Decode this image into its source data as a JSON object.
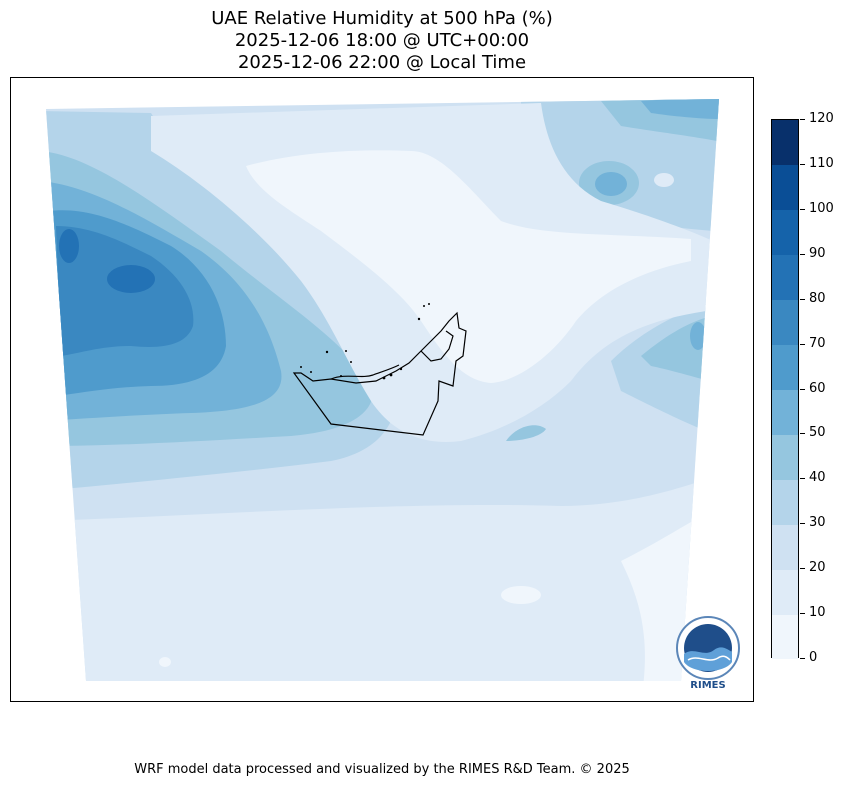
{
  "title": {
    "line1": "UAE Relative Humidity at 500 hPa (%)",
    "line2": "2025-12-06 18:00 @ UTC+00:00",
    "line3": "2025-12-06 22:00 @ Local Time"
  },
  "colorbar": {
    "ticks": [
      "120",
      "110",
      "100",
      "90",
      "80",
      "70",
      "60",
      "50",
      "40",
      "30",
      "20",
      "10",
      "0"
    ],
    "levels": [
      {
        "range": "0-10",
        "color": "#f0f6fc"
      },
      {
        "range": "10-20",
        "color": "#dfebf7"
      },
      {
        "range": "20-30",
        "color": "#cfe1f2"
      },
      {
        "range": "30-40",
        "color": "#b4d4ea"
      },
      {
        "range": "40-50",
        "color": "#95c6df"
      },
      {
        "range": "50-60",
        "color": "#72b2d8"
      },
      {
        "range": "60-70",
        "color": "#4f9bcc"
      },
      {
        "range": "70-80",
        "color": "#3a88c1"
      },
      {
        "range": "80-90",
        "color": "#2372b5"
      },
      {
        "range": "90-100",
        "color": "#1563aa"
      },
      {
        "range": "100-110",
        "color": "#0a4e96"
      },
      {
        "range": "110-120",
        "color": "#08306b"
      }
    ]
  },
  "logo": {
    "text": "RIMES"
  },
  "footer": "WRF model data processed and visualized by the RIMES R&D Team. © 2025"
}
